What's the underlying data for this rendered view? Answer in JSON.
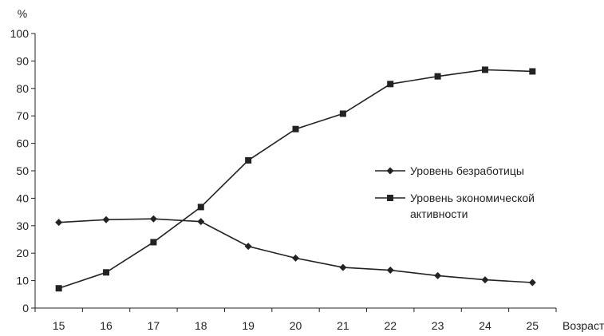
{
  "chart_data": {
    "type": "line",
    "title": "",
    "xlabel": "Возраст",
    "ylabel": "%",
    "x": [
      15,
      16,
      17,
      18,
      19,
      20,
      21,
      22,
      23,
      24,
      25
    ],
    "ylim": [
      0,
      100
    ],
    "yticks": [
      0,
      10,
      20,
      30,
      40,
      50,
      60,
      70,
      80,
      90,
      100
    ],
    "grid": false,
    "legend": "right",
    "series": [
      {
        "name": "Уровень безработицы",
        "marker": "diamond",
        "color": "#222222",
        "values": [
          31.2,
          32.2,
          32.5,
          31.5,
          22.5,
          18.2,
          14.8,
          13.8,
          11.8,
          10.3,
          9.3
        ]
      },
      {
        "name": "Уровень экономической активности",
        "name_lines": [
          "Уровень экономической",
          "активности"
        ],
        "marker": "square",
        "color": "#222222",
        "values": [
          7.2,
          13.0,
          24.0,
          36.8,
          53.8,
          65.2,
          70.8,
          81.6,
          84.4,
          86.8,
          86.2
        ]
      }
    ]
  }
}
